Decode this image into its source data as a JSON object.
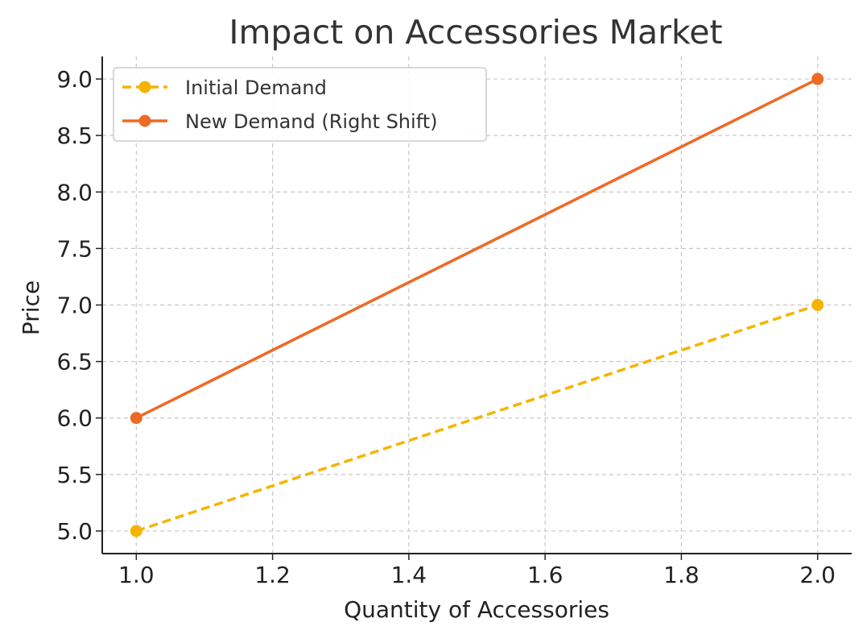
{
  "chart_data": {
    "type": "line",
    "title": "Impact on Accessories Market",
    "xlabel": "Quantity of Accessories",
    "ylabel": "Price",
    "xlim": [
      0.95,
      2.05
    ],
    "ylim": [
      4.8,
      9.2
    ],
    "xticks": [
      1.0,
      1.2,
      1.4,
      1.6,
      1.8,
      2.0
    ],
    "xtick_labels": [
      "1.0",
      "1.2",
      "1.4",
      "1.6",
      "1.8",
      "2.0"
    ],
    "yticks": [
      5.0,
      5.5,
      6.0,
      6.5,
      7.0,
      7.5,
      8.0,
      8.5,
      9.0
    ],
    "ytick_labels": [
      "5.0",
      "5.5",
      "6.0",
      "6.5",
      "7.0",
      "7.5",
      "8.0",
      "8.5",
      "9.0"
    ],
    "grid": true,
    "legend_position": "top-left",
    "series": [
      {
        "name": "Initial Demand",
        "x": [
          1,
          2
        ],
        "y": [
          5,
          7
        ],
        "color": "#f5b400",
        "line_style": "dashed",
        "marker": "circle"
      },
      {
        "name": "New Demand (Right Shift)",
        "x": [
          1,
          2
        ],
        "y": [
          6,
          9
        ],
        "color": "#ee6a24",
        "line_style": "solid",
        "marker": "circle"
      }
    ]
  }
}
